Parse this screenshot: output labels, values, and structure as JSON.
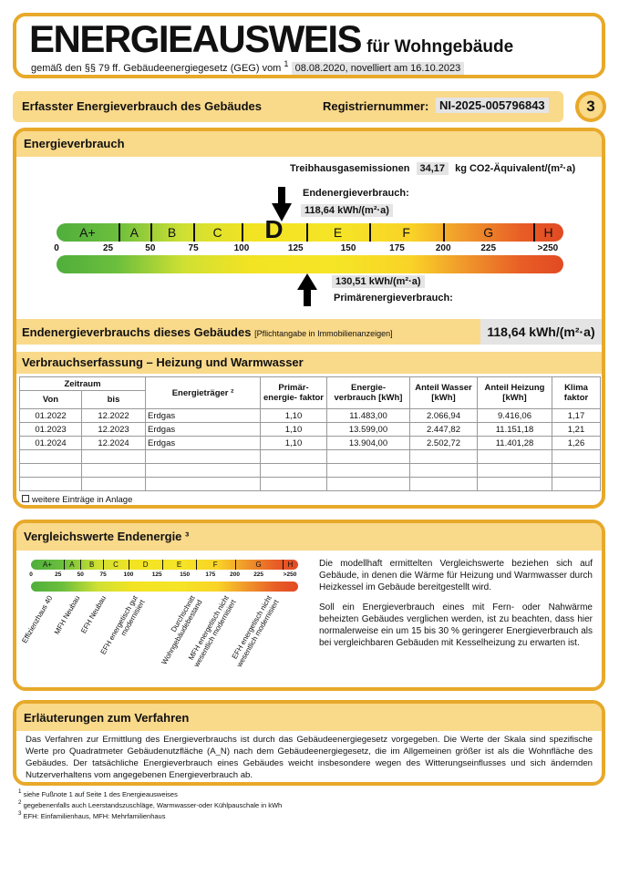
{
  "header": {
    "title": "ENERGIEAUSWEIS",
    "subtitle": "für Wohngebäude",
    "basis": "gemäß den §§ 79 ff. Gebäudeenergiegesetz (GEG) vom",
    "basis_footnote": "1",
    "dates": "08.08.2020, novelliert am 16.10.2023"
  },
  "bar": {
    "label": "Erfasster Energieverbrauch des Gebäudes",
    "reg_label": "Registriernummer:",
    "reg_number": "NI-2025-005796843",
    "page": "3"
  },
  "energy": {
    "heading": "Energieverbrauch",
    "ghg_label": "Treibhausgasemissionen",
    "ghg_value": "34,17",
    "ghg_unit": "kg CO2-Äquivalent/(m²·a)",
    "end_label": "Endenergieverbrauch:",
    "end_value": "118,64 kWh/(m²·a)",
    "end_numeric": 118.64,
    "primary_label": "Primärenergieverbrauch:",
    "primary_value": "130,51 kWh/(m²·a)",
    "primary_numeric": 130.51,
    "current_class": "D",
    "classes": [
      "A+",
      "A",
      "B",
      "C",
      "D",
      "E",
      "F",
      "G",
      "H"
    ],
    "ticks": [
      "0",
      "25",
      "50",
      "75",
      "100",
      "125",
      "150",
      "175",
      "200",
      "225",
      ">250"
    ],
    "summary_label": "Endenergieverbrauchs dieses Gebäudes",
    "summary_note": "[Pflichtangabe in Immobilienanzeigen]",
    "summary_value": "118,64 kWh/(m²·a)"
  },
  "consumption": {
    "heading": "Verbrauchserfassung – Heizung und Warmwasser",
    "headers": {
      "zeitraum": "Zeitraum",
      "von": "Von",
      "bis": "bis",
      "traeger": "Energieträger ²",
      "pef": "Primär- energie- faktor",
      "verbrauch": "Energie- verbrauch [kWh]",
      "wasser": "Anteil Wasser [kWh]",
      "heizung": "Anteil Heizung [kWh]",
      "klima": "Klima faktor"
    },
    "rows": [
      [
        "01.2022",
        "12.2022",
        "Erdgas",
        "1,10",
        "11.483,00",
        "2.066,94",
        "9.416,06",
        "1,17"
      ],
      [
        "01.2023",
        "12.2023",
        "Erdgas",
        "1,10",
        "13.599,00",
        "2.447,82",
        "11.151,18",
        "1,21"
      ],
      [
        "01.2024",
        "12.2024",
        "Erdgas",
        "1,10",
        "13.904,00",
        "2.502,72",
        "11.401,28",
        "1,26"
      ]
    ],
    "more_label": "weitere Einträge in Anlage",
    "more_checked": false
  },
  "comparison": {
    "heading": "Vergleichswerte Endenergie ³",
    "labels": [
      "Effizienzhaus 40",
      "MFH Neubau",
      "EFH Neubau",
      "EFH energetisch gut modernisiert",
      "Durchschnitt Wohngebäudebestand",
      "MFH energetisch nicht wesentlich modernisiert",
      "EFH energetisch nicht wesentlich modernisiert"
    ],
    "text1": "Die modellhaft ermittelten Vergleichswerte beziehen sich auf Gebäude, in denen die Wärme für Heizung und Warmwasser durch Heizkessel im Gebäude bereitgestellt wird.",
    "text2": "Soll ein Energieverbrauch eines mit Fern- oder Nahwärme beheizten Gebäudes verglichen werden, ist zu beachten, dass hier normalerweise ein um 15 bis 30 % geringerer Energieverbrauch als bei vergleichbaren Gebäuden mit Kesselheizung zu erwarten ist."
  },
  "explanation": {
    "heading": "Erläuterungen zum Verfahren",
    "text": "Das Verfahren zur Ermittlung des Energieverbrauchs ist durch das Gebäudeenergiegesetz vorgegeben. Die Werte der Skala sind spezifische Werte pro Quadratmeter Gebäudenutzfläche (A_N) nach dem Gebäudeenergiegesetz, die im Allgemeinen größer ist als die Wohnfläche des Gebäudes. Der tatsächliche Energieverbrauch eines Gebäudes weicht insbesondere wegen des Witterungseinflusses und sich ändernden Nutzerverhaltens vom angegebenen Energieverbrauch ab."
  },
  "footnotes": [
    {
      "n": "1",
      "text": "siehe Fußnote 1 auf Seite 1 des Energieausweises"
    },
    {
      "n": "2",
      "text": "gegebenenfalls auch Leerstandszuschläge, Warmwasser-oder Kühlpauschale in kWh"
    },
    {
      "n": "3",
      "text": "EFH: Einfamilienhaus, MFH: Mehrfamilienhaus"
    }
  ]
}
